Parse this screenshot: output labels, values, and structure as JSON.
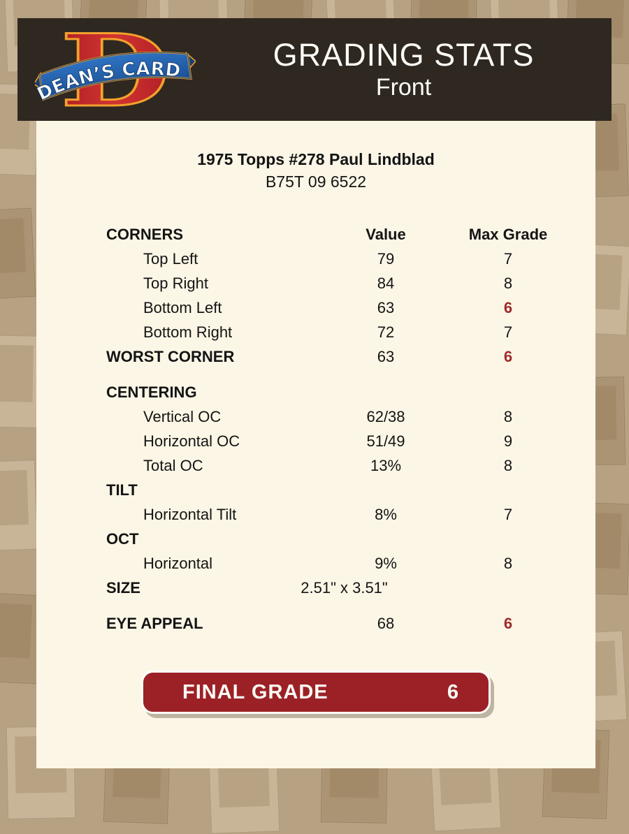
{
  "header": {
    "title": "GRADING STATS",
    "subtitle": "Front",
    "logo": {
      "banner_text": "DEAN’S CARDS",
      "letter": "D"
    }
  },
  "card": {
    "title": "1975 Topps #278 Paul Lindblad",
    "code": "B75T 09 6522"
  },
  "table": {
    "rows": [
      {
        "label": "CORNERS",
        "value": "Value",
        "grade": "Max Grade",
        "type": "header"
      },
      {
        "label": "Top Left",
        "value": "79",
        "grade": "7",
        "type": "item"
      },
      {
        "label": "Top Right",
        "value": "84",
        "grade": "8",
        "type": "item"
      },
      {
        "label": "Bottom Left",
        "value": "63",
        "grade": "6",
        "type": "item",
        "flag": true
      },
      {
        "label": "Bottom Right",
        "value": "72",
        "grade": "7",
        "type": "item"
      },
      {
        "label": "WORST CORNER",
        "value": "63",
        "grade": "6",
        "type": "total",
        "flag": true
      },
      {
        "label": "CENTERING",
        "value": "",
        "grade": "",
        "type": "section",
        "gap": true
      },
      {
        "label": "Vertical OC",
        "value": "62/38",
        "grade": "8",
        "type": "item"
      },
      {
        "label": "Horizontal OC",
        "value": "51/49",
        "grade": "9",
        "type": "item"
      },
      {
        "label": "Total OC",
        "value": "13%",
        "grade": "8",
        "type": "item"
      },
      {
        "label": "TILT",
        "value": "",
        "grade": "",
        "type": "section"
      },
      {
        "label": "Horizontal Tilt",
        "value": "8%",
        "grade": "7",
        "type": "item"
      },
      {
        "label": "OCT",
        "value": "",
        "grade": "",
        "type": "section"
      },
      {
        "label": "Horizontal",
        "value": "9%",
        "grade": "8",
        "type": "item"
      },
      {
        "label": "SIZE",
        "value": "2.51\" x 3.51\"",
        "grade": "",
        "type": "size"
      },
      {
        "label": "EYE APPEAL",
        "value": "68",
        "grade": "6",
        "type": "total",
        "flag": true,
        "gap": true
      }
    ]
  },
  "final_grade": {
    "label": "FINAL GRADE",
    "value": "6"
  },
  "colors": {
    "page_background": "#b7a183",
    "header_background": "#2e2820",
    "panel_background": "#fcf6e6",
    "flag_red": "#9e2a2b",
    "button_red": "#9b2126",
    "logo_red": "#c3262b",
    "logo_orange": "#f2a12d",
    "logo_blue": "#2a67b4"
  }
}
